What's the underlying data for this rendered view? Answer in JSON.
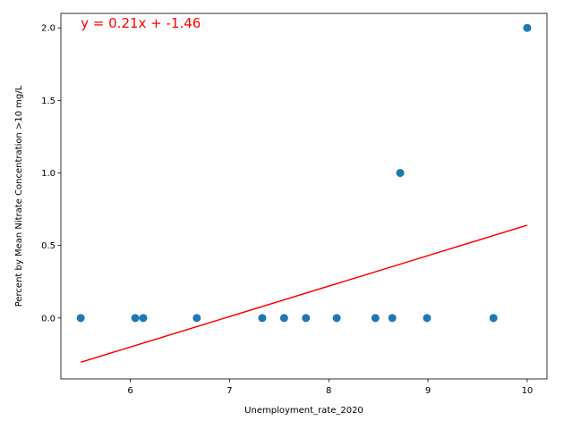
{
  "chart_data": {
    "type": "scatter",
    "title": "",
    "xlabel": "Unemployment_rate_2020",
    "ylabel": "Percent by Mean Nitrate Concentration >10 mg/L",
    "xlim": [
      5.3,
      10.2
    ],
    "ylim": [
      -0.42,
      2.1
    ],
    "xticks": [
      6,
      7,
      8,
      9,
      10
    ],
    "yticks": [
      0.0,
      0.5,
      1.0,
      1.5,
      2.0
    ],
    "xtick_labels": [
      "6",
      "7",
      "8",
      "9",
      "10"
    ],
    "ytick_labels": [
      "0.0",
      "0.5",
      "1.0",
      "1.5",
      "2.0"
    ],
    "grid": false,
    "points": {
      "color": "#1f77b4",
      "x": [
        5.5,
        6.05,
        6.13,
        6.67,
        7.33,
        7.55,
        7.77,
        8.08,
        8.47,
        8.64,
        8.72,
        8.99,
        9.66,
        10.0
      ],
      "y": [
        0,
        0,
        0,
        0,
        0,
        0,
        0,
        0,
        0,
        0,
        1,
        0,
        0,
        2
      ]
    },
    "fit_line": {
      "color": "#ff0000",
      "slope": 0.21,
      "intercept": -1.46,
      "x_range": [
        5.5,
        10.0
      ]
    },
    "annotation": {
      "text": "y = 0.21x + -1.46",
      "color": "#ff0000",
      "x": 5.5,
      "y": 2.0
    }
  }
}
